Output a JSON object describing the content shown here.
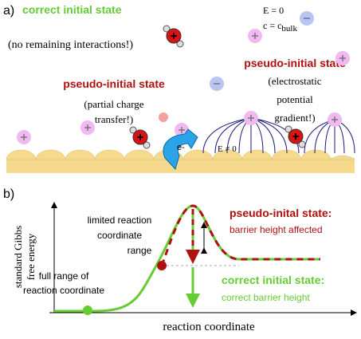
{
  "panel_a": {
    "label": "a)",
    "correct": {
      "title": "correct initial state",
      "note": "(no remaining interactions!)"
    },
    "bulk": {
      "field": "E = 0",
      "conc": {
        "main": "c = c",
        "sub": "bulk"
      }
    },
    "pseudo_left": {
      "title": "pseudo-initial state",
      "lines": [
        "(partial charge",
        "transfer!)"
      ]
    },
    "pseudo_right": {
      "title": "pseudo-initial state",
      "lines": [
        "(electrostatic",
        "potential",
        "gradient!)"
      ]
    },
    "surface_field": "E ≠ 0",
    "electron": "e-"
  },
  "panel_b": {
    "label": "b)",
    "y_label": [
      "standard Gibbs",
      "free energy"
    ],
    "x_label": "reaction coordinate",
    "limited": [
      "limited reaction",
      "coordinate",
      "range"
    ],
    "full": [
      "full range of",
      "reaction coordinate"
    ],
    "pseudo": {
      "title": "pseudo-inital state:",
      "note": "barrier height affected"
    },
    "correct": {
      "title": "correct initial state:",
      "note": "correct barrier height"
    }
  }
}
